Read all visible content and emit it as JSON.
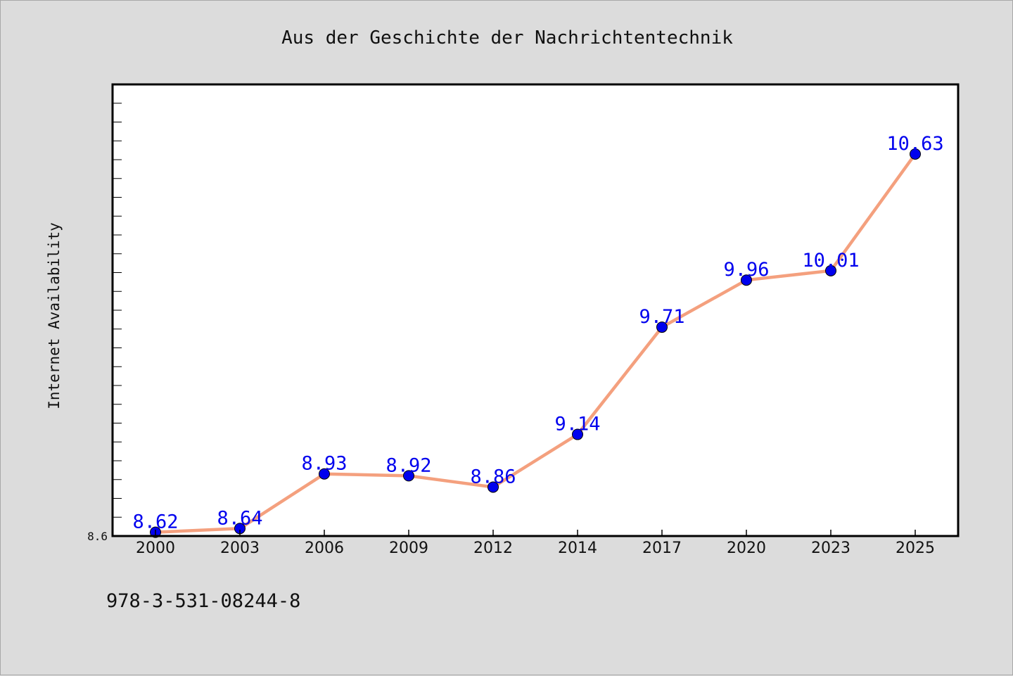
{
  "footer": {
    "isbn": "978-3-531-08244-8"
  },
  "colors": {
    "line": "#f4a07e",
    "marker": "#0000ee",
    "label": "#0000ee",
    "plot_bg": "#ffffff",
    "page_bg": "#dcdcdc",
    "frame": "#000000"
  },
  "chart_data": {
    "type": "line",
    "title": "Aus der Geschichte der Nachrichtentechnik",
    "xlabel": "",
    "ylabel": "Internet Availability",
    "categories": [
      "2000",
      "2003",
      "2006",
      "2009",
      "2012",
      "2014",
      "2017",
      "2020",
      "2023",
      "2025"
    ],
    "series": [
      {
        "values": [
          8.62,
          8.64,
          8.93,
          8.92,
          8.86,
          9.14,
          9.71,
          9.96,
          10.01,
          10.63
        ]
      }
    ],
    "data_labels": [
      "8.62",
      "8.64",
      "8.93",
      "8.92",
      "8.86",
      "9.14",
      "9.71",
      "9.96",
      "10.01",
      "10.63"
    ],
    "ytick_labels": [
      {
        "value": 8.6,
        "label": "8.6"
      }
    ],
    "ylim": [
      8.6,
      11.0
    ],
    "ytick_minor_step": 0.1,
    "grid": false,
    "legend": "none"
  }
}
